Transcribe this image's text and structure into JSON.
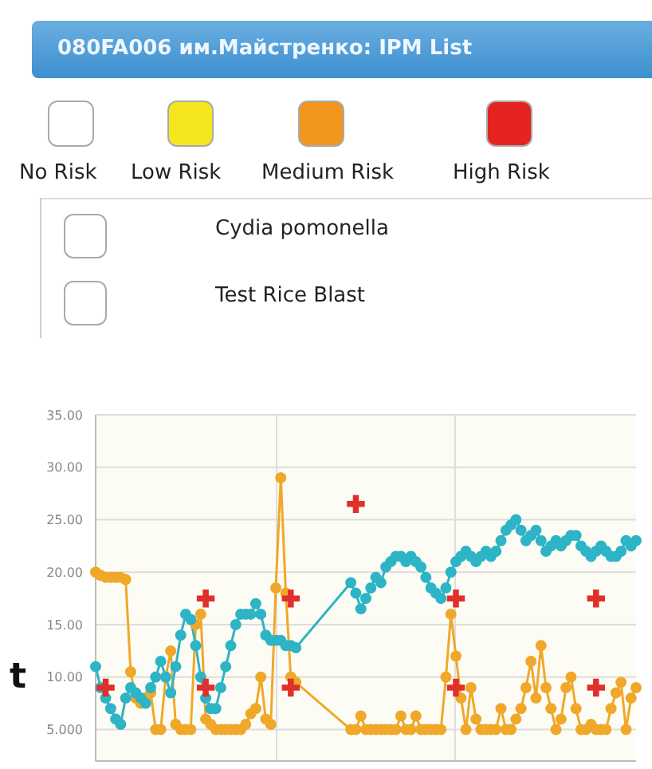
{
  "chart_data": [
    {
      "type": "other",
      "title": "080FA006 им.Майстренко: IPM List",
      "categories": [
        "No Risk",
        "Low Risk",
        "Medium Risk",
        "High Risk"
      ],
      "colors": [
        "#ffffff",
        "#f5e61e",
        "#f3961e",
        "#e52320"
      ],
      "annotations": [
        "Cydia pomonella",
        "Test Rice Blast"
      ]
    },
    {
      "type": "line",
      "annotations": [
        {
          "text": "t"
        }
      ],
      "categories": [
        null,
        null,
        null,
        null,
        null,
        null,
        null,
        null,
        null,
        null,
        null,
        null,
        null,
        null,
        null,
        null,
        null,
        null,
        null,
        null,
        null,
        null,
        null,
        null,
        null,
        null,
        null,
        null,
        null,
        null,
        null,
        null,
        null,
        null,
        null,
        null,
        null,
        null,
        null,
        null,
        null,
        null,
        null,
        null,
        null,
        null,
        null,
        null,
        null,
        null,
        null,
        null,
        null,
        null,
        null,
        null,
        null,
        null,
        null,
        null,
        null,
        null,
        null,
        null,
        null,
        null,
        null,
        null,
        null,
        null,
        null,
        null,
        null,
        null,
        null,
        null,
        null,
        null,
        null,
        null,
        null,
        null,
        null,
        null,
        null,
        null,
        null,
        null,
        null,
        null,
        null,
        null,
        null,
        null,
        null,
        null,
        null,
        null,
        null,
        null,
        null,
        null,
        null,
        null,
        null,
        null,
        null,
        null,
        null
      ],
      "ylim": [
        2,
        35
      ],
      "yticks": [
        {
          "value": 5,
          "label": "5.000"
        },
        {
          "value": 10,
          "label": "10.00"
        },
        {
          "value": 15,
          "label": "15.00"
        },
        {
          "value": 20,
          "label": "20.00"
        },
        {
          "value": 25,
          "label": "25.00"
        },
        {
          "value": 30,
          "label": "30.00"
        },
        {
          "value": 35,
          "label": "35.00"
        }
      ],
      "grid": true,
      "tick_labels": "y",
      "series": [
        {
          "type": "line",
          "color": "#f0a82a",
          "marker": "circle",
          "values": [
            20,
            19.7,
            19.5,
            19.5,
            19.5,
            19.5,
            19.3,
            10.5,
            8,
            7.5,
            8,
            8.5,
            5,
            5,
            10,
            12.5,
            5.5,
            5,
            5,
            5,
            15,
            16,
            6,
            5.5,
            5,
            5,
            5,
            5,
            5,
            5,
            5.5,
            6.5,
            7,
            10,
            6,
            5.5,
            18.5,
            29,
            18,
            10,
            9.5,
            null,
            null,
            null,
            null,
            null,
            null,
            null,
            null,
            null,
            null,
            5,
            5,
            6.3,
            5,
            5,
            5,
            5,
            5,
            5,
            5,
            6.3,
            5,
            5,
            6.3,
            5,
            5,
            5,
            5,
            5,
            10,
            16,
            12,
            8,
            5,
            9,
            6,
            5,
            5,
            5,
            5,
            7,
            5,
            5,
            6,
            7,
            9,
            11.5,
            8,
            13,
            9,
            7,
            5,
            6,
            9,
            10,
            7,
            5,
            5,
            5.5,
            5,
            5,
            5,
            7,
            8.5,
            9.5,
            5,
            8,
            9
          ]
        },
        {
          "type": "line",
          "color": "#2db4c6",
          "marker": "circle",
          "values": [
            11,
            9,
            8,
            7,
            6,
            5.5,
            8,
            9,
            8.5,
            8,
            7.5,
            9,
            10,
            11.5,
            10,
            8.5,
            11,
            14,
            16,
            15.5,
            13,
            10,
            8,
            7,
            7,
            9,
            11,
            13,
            15,
            16,
            16,
            16,
            17,
            16,
            14,
            13.5,
            13.5,
            13.5,
            13,
            13,
            12.8,
            null,
            null,
            null,
            null,
            null,
            null,
            null,
            null,
            null,
            null,
            19,
            18,
            16.5,
            17.5,
            18.5,
            19.5,
            19,
            20.5,
            21,
            21.5,
            21.5,
            21,
            21.5,
            21,
            20.5,
            19.5,
            18.5,
            18,
            17.5,
            18.5,
            20,
            21,
            21.5,
            22,
            21.5,
            21,
            21.5,
            22,
            21.5,
            22,
            23,
            24,
            24.5,
            25,
            24,
            23,
            23.5,
            24,
            23,
            22,
            22.5,
            23,
            22.5,
            23,
            23.5,
            23.5,
            22.5,
            22,
            21.5,
            22,
            22.5,
            22,
            21.5,
            21.5,
            22,
            23,
            22.5,
            23
          ]
        },
        {
          "type": "scatter",
          "color": "#e0302c",
          "marker": "cross",
          "values": [
            null,
            null,
            null,
            null,
            null,
            null,
            null,
            null,
            null,
            null,
            null,
            null,
            null,
            null,
            null,
            null,
            null,
            null,
            null,
            null,
            null,
            null,
            17.5,
            null,
            null,
            null,
            null,
            null,
            null,
            null,
            null,
            null,
            null,
            null,
            null,
            null,
            null,
            null,
            null,
            17.5,
            null,
            null,
            null,
            null,
            null,
            null,
            null,
            null,
            null,
            null,
            null,
            null,
            26.5,
            null,
            null,
            null,
            null,
            null,
            null,
            null,
            null,
            null,
            null,
            null,
            null,
            null,
            null,
            null,
            null,
            null,
            null,
            null,
            17.5,
            null,
            null,
            null,
            null,
            null,
            null,
            null,
            null,
            null,
            null,
            null,
            null,
            null,
            null,
            null,
            null,
            null,
            null,
            null,
            null,
            null,
            null,
            null,
            null,
            null,
            null,
            null,
            17.5,
            null,
            null,
            null,
            null,
            null,
            null,
            null,
            null
          ]
        },
        {
          "type": "scatter",
          "color": "#e0302c",
          "marker": "cross",
          "values": [
            null,
            null,
            9,
            null,
            null,
            null,
            null,
            null,
            null,
            null,
            null,
            null,
            null,
            null,
            null,
            null,
            null,
            null,
            null,
            null,
            null,
            null,
            9,
            null,
            null,
            null,
            null,
            null,
            null,
            null,
            null,
            null,
            null,
            null,
            null,
            null,
            null,
            null,
            null,
            9,
            null,
            null,
            null,
            null,
            null,
            null,
            null,
            null,
            null,
            null,
            null,
            null,
            null,
            null,
            null,
            null,
            null,
            null,
            null,
            null,
            null,
            null,
            null,
            null,
            null,
            null,
            null,
            null,
            null,
            null,
            null,
            null,
            9,
            null,
            null,
            null,
            null,
            null,
            null,
            null,
            null,
            null,
            null,
            null,
            null,
            null,
            null,
            null,
            null,
            null,
            null,
            null,
            null,
            null,
            null,
            null,
            null,
            null,
            null,
            null,
            9,
            null,
            null,
            null,
            null,
            null,
            null,
            null,
            null
          ]
        }
      ]
    }
  ]
}
